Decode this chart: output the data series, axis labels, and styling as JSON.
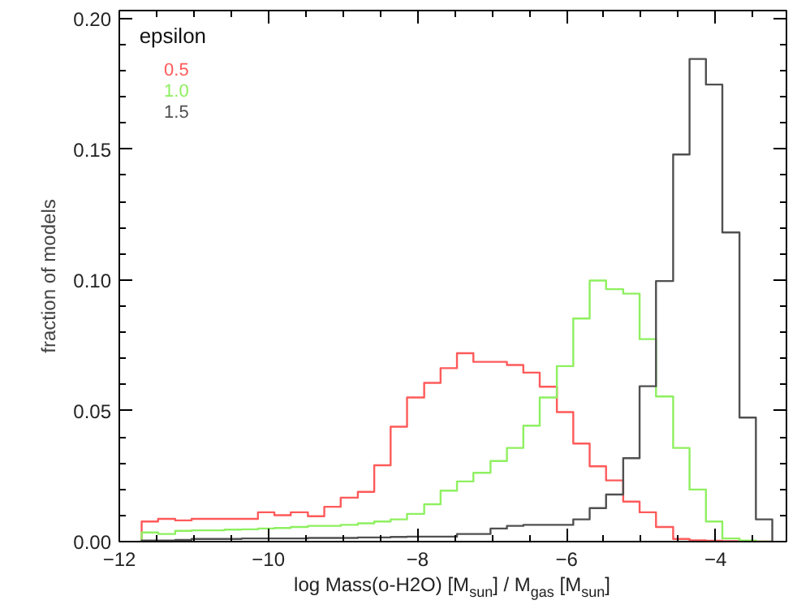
{
  "chart_data": {
    "type": "histogram",
    "xlabel": "log Mass(o-H2O) [M$_{sun}$] / M$_{gas}$ [M$_{sun}$]",
    "ylabel": "fraction of models",
    "legend_title": "epsilon",
    "legend": "top left",
    "grid": false,
    "bins": [
      -11.7,
      -11.48,
      -11.25,
      -11.03,
      -10.81,
      -10.59,
      -10.36,
      -10.14,
      -9.92,
      -9.7,
      -9.47,
      -9.25,
      -9.03,
      -8.8,
      -8.58,
      -8.36,
      -8.14,
      -7.91,
      -7.69,
      -7.47,
      -7.25,
      -7.02,
      -6.8,
      -6.58,
      -6.36,
      -6.13,
      -5.91,
      -5.69,
      -5.47,
      -5.24,
      -5.02,
      -4.8,
      -4.57,
      -4.35,
      -4.13,
      -3.91,
      -3.68,
      -3.46,
      -3.24
    ],
    "series": [
      {
        "name": "0.5",
        "color": "#ff5a5a",
        "values": [
          0.0077,
          0.0087,
          0.0081,
          0.0087,
          0.0087,
          0.0087,
          0.0087,
          0.0112,
          0.0101,
          0.0112,
          0.0097,
          0.0133,
          0.0168,
          0.019,
          0.0292,
          0.0439,
          0.0551,
          0.0607,
          0.0663,
          0.072,
          0.0687,
          0.0687,
          0.0675,
          0.0646,
          0.0592,
          0.0495,
          0.0375,
          0.0288,
          0.0234,
          0.0153,
          0.0112,
          0.0056,
          0.001,
          0.0005,
          0.0003,
          0.0002,
          0,
          0
        ]
      },
      {
        "name": "1.0",
        "color": "#8ef060",
        "values": [
          0.0035,
          0.0029,
          0.0041,
          0.0043,
          0.0043,
          0.0046,
          0.0047,
          0.005,
          0.0052,
          0.0056,
          0.006,
          0.006,
          0.0064,
          0.007,
          0.0077,
          0.0085,
          0.0106,
          0.0143,
          0.0195,
          0.023,
          0.0263,
          0.0308,
          0.0358,
          0.0443,
          0.0551,
          0.0671,
          0.0853,
          0.0998,
          0.0965,
          0.0948,
          0.0774,
          0.0555,
          0.0358,
          0.0199,
          0.0077,
          0.0012,
          0.0004,
          0
        ]
      },
      {
        "name": "1.5",
        "color": "#505050",
        "values": [
          0.0004,
          0.0004,
          0.0006,
          0.001,
          0.001,
          0.001,
          0.0012,
          0.0012,
          0.0012,
          0.0012,
          0.0014,
          0.0014,
          0.0014,
          0.0016,
          0.0016,
          0.0018,
          0.0019,
          0.0019,
          0.0019,
          0.0029,
          0.0029,
          0.005,
          0.006,
          0.0064,
          0.0064,
          0.0064,
          0.0085,
          0.0128,
          0.018,
          0.0319,
          0.0594,
          0.0996,
          0.148,
          0.1845,
          0.1747,
          0.1182,
          0.0474,
          0.0085
        ]
      }
    ],
    "xlim": [
      -12,
      -3.05
    ],
    "ylim": [
      0,
      0.203
    ],
    "xticks": [
      {
        "value": -12,
        "label": "−12"
      },
      {
        "value": -10,
        "label": "−10"
      },
      {
        "value": -8,
        "label": "−8"
      },
      {
        "value": -6,
        "label": "−6"
      },
      {
        "value": -4,
        "label": "−4"
      }
    ],
    "yticks": [
      {
        "value": 0,
        "label": "0.00"
      },
      {
        "value": 0.05,
        "label": "0.05"
      },
      {
        "value": 0.1,
        "label": "0.10"
      },
      {
        "value": 0.15,
        "label": "0.15"
      },
      {
        "value": 0.2,
        "label": "0.20"
      }
    ]
  }
}
